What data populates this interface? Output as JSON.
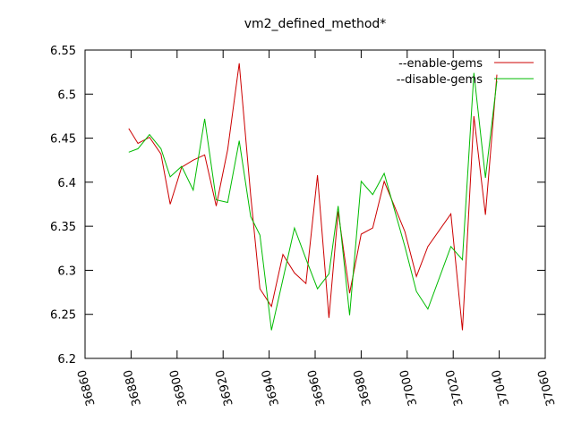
{
  "chart_data": {
    "type": "line",
    "title": "vm2_defined_method*",
    "xlabel": "",
    "ylabel": "",
    "xlim": [
      36860,
      37060
    ],
    "ylim": [
      6.2,
      6.55
    ],
    "xticks": [
      "36860",
      "36880",
      "36900",
      "36920",
      "36940",
      "36960",
      "36980",
      "37000",
      "37020",
      "37040",
      "37060"
    ],
    "yticks": [
      "6.2",
      "6.25",
      "6.3",
      "6.35",
      "6.4",
      "6.45",
      "6.5",
      "6.55"
    ],
    "grid": false,
    "legend_position": "top-right",
    "series": [
      {
        "name": "--enable-gems",
        "color": "#cc0000",
        "points": [
          [
            36879,
            6.461
          ],
          [
            36883,
            6.444
          ],
          [
            36888,
            6.451
          ],
          [
            36893,
            6.432
          ],
          [
            36897,
            6.375
          ],
          [
            36902,
            6.417
          ],
          [
            36907,
            6.425
          ],
          [
            36912,
            6.431
          ],
          [
            36917,
            6.373
          ],
          [
            36922,
            6.437
          ],
          [
            36927,
            6.535
          ],
          [
            36932,
            6.385
          ],
          [
            36936,
            6.279
          ],
          [
            36941,
            6.259
          ],
          [
            36946,
            6.318
          ],
          [
            36951,
            6.297
          ],
          [
            36956,
            6.285
          ],
          [
            36961,
            6.408
          ],
          [
            36966,
            6.246
          ],
          [
            36970,
            6.367
          ],
          [
            36975,
            6.274
          ],
          [
            36980,
            6.341
          ],
          [
            36985,
            6.348
          ],
          [
            36990,
            6.401
          ],
          [
            36999,
            6.344
          ],
          [
            37004,
            6.293
          ],
          [
            37009,
            6.327
          ],
          [
            37019,
            6.364
          ],
          [
            37024,
            6.232
          ],
          [
            37029,
            6.475
          ],
          [
            37034,
            6.363
          ],
          [
            37039,
            6.522
          ]
        ]
      },
      {
        "name": "--disable-gems",
        "color": "#00bb00",
        "points": [
          [
            36879,
            6.434
          ],
          [
            36883,
            6.438
          ],
          [
            36888,
            6.454
          ],
          [
            36893,
            6.438
          ],
          [
            36897,
            6.406
          ],
          [
            36902,
            6.418
          ],
          [
            36907,
            6.391
          ],
          [
            36912,
            6.472
          ],
          [
            36917,
            6.38
          ],
          [
            36922,
            6.377
          ],
          [
            36927,
            6.447
          ],
          [
            36932,
            6.361
          ],
          [
            36936,
            6.34
          ],
          [
            36941,
            6.232
          ],
          [
            36951,
            6.348
          ],
          [
            36956,
            6.313
          ],
          [
            36961,
            6.279
          ],
          [
            36966,
            6.296
          ],
          [
            36970,
            6.373
          ],
          [
            36975,
            6.249
          ],
          [
            36980,
            6.401
          ],
          [
            36985,
            6.386
          ],
          [
            36990,
            6.41
          ],
          [
            36999,
            6.327
          ],
          [
            37004,
            6.276
          ],
          [
            37009,
            6.256
          ],
          [
            37019,
            6.327
          ],
          [
            37024,
            6.312
          ],
          [
            37029,
            6.524
          ],
          [
            37034,
            6.405
          ],
          [
            37039,
            6.515
          ]
        ]
      }
    ]
  }
}
